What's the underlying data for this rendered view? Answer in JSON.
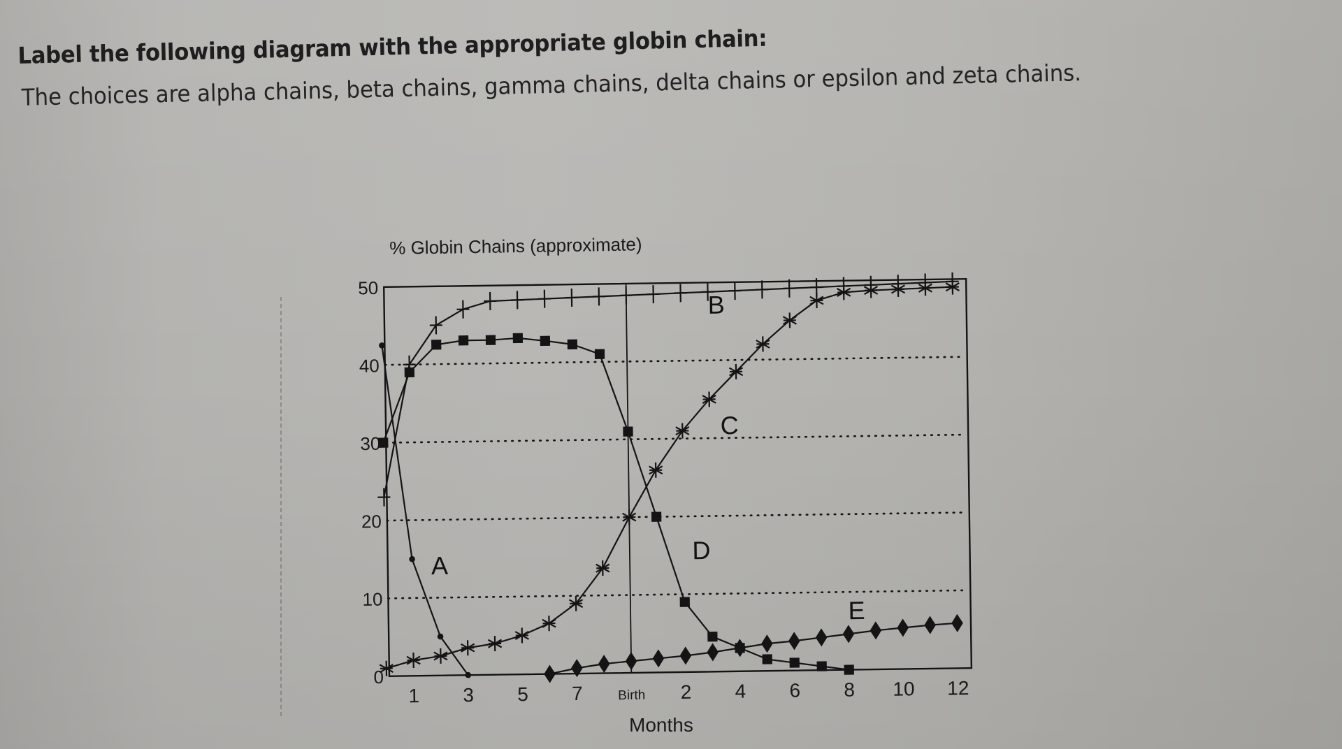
{
  "question": {
    "line1": "Label the following diagram with the appropriate globin chain:",
    "line2": "The choices are alpha chains, beta chains, gamma chains, delta chains or epsilon and zeta chains."
  },
  "chart_data": {
    "type": "line",
    "title": "% Globin Chains (approximate)",
    "xlabel": "Months",
    "ylabel": "% Globin Chains (approximate)",
    "ylim": [
      0,
      50
    ],
    "yticks": [
      0,
      10,
      20,
      30,
      40,
      50
    ],
    "xlim": [
      0,
      21
    ],
    "x_tick_positions": [
      1,
      3,
      5,
      7,
      9,
      11,
      13,
      15,
      17,
      19,
      21
    ],
    "x_tick_labels": [
      "1",
      "3",
      "5",
      "7",
      "Birth",
      "2",
      "4",
      "6",
      "8",
      "10",
      "12"
    ],
    "x_note": "x index = month step: 0-9 prenatal months, 9 = Birth, then postnatal months 1-12 (index 10-21, plotted as half-steps per label)",
    "grid": "dotted horizontal at 10,20,30,40 and vertical solid line at Birth",
    "legend": "none; curves labeled directly A, B, C, D, E",
    "series": [
      {
        "name": "A",
        "marker": "dot",
        "x": [
          0,
          1,
          2,
          3
        ],
        "values": [
          42.5,
          15,
          5,
          0
        ],
        "label_pos": [
          1.7,
          13
        ]
      },
      {
        "name": "B",
        "marker": "plus",
        "x": [
          0,
          1,
          2,
          3,
          4,
          5,
          6,
          7,
          8,
          9,
          10,
          11,
          12,
          13,
          14,
          15,
          16,
          17,
          18,
          19,
          20,
          21
        ],
        "values": [
          23,
          40,
          45,
          47,
          48,
          48.1,
          48.2,
          48.3,
          48.4,
          48.5,
          48.6,
          48.7,
          48.8,
          48.9,
          49,
          49.1,
          49.2,
          49.3,
          49.4,
          49.5,
          49.6,
          49.7
        ],
        "label_pos": [
          12,
          46
        ]
      },
      {
        "name": "C",
        "marker": "asterisk",
        "x": [
          0,
          1,
          2,
          3,
          4,
          5,
          6,
          7,
          8,
          9,
          10,
          11,
          12,
          13,
          14,
          15,
          16,
          17,
          18,
          19,
          20,
          21
        ],
        "values": [
          1,
          2,
          2.5,
          3.5,
          4,
          5,
          6.5,
          9,
          13.5,
          20,
          26,
          31,
          35,
          38.5,
          42,
          45,
          47.5,
          48.5,
          48.7,
          48.8,
          48.9,
          49
        ],
        "label_pos": [
          12.4,
          30.5
        ]
      },
      {
        "name": "D",
        "marker": "square",
        "x": [
          0,
          1,
          2,
          3,
          4,
          5,
          6,
          7,
          8,
          9,
          10,
          11,
          12,
          13,
          14,
          15,
          16,
          17
        ],
        "values": [
          30,
          39,
          42.5,
          43,
          43,
          43.2,
          42.8,
          42.3,
          41,
          31,
          20,
          9,
          4.5,
          3,
          1.5,
          1,
          0.5,
          0
        ],
        "label_pos": [
          11.3,
          14.5
        ]
      },
      {
        "name": "E",
        "marker": "diamond",
        "x": [
          6,
          7,
          8,
          9,
          10,
          11,
          12,
          13,
          14,
          15,
          16,
          17,
          18,
          19,
          20,
          21
        ],
        "values": [
          0,
          0.7,
          1.2,
          1.5,
          1.8,
          2.1,
          2.5,
          3,
          3.5,
          3.8,
          4.2,
          4.6,
          5,
          5.3,
          5.6,
          5.8
        ],
        "label_pos": [
          17,
          6.5
        ]
      }
    ]
  },
  "ui": {
    "ink_color": "#141414",
    "paper_color": "#b6b5b2"
  }
}
